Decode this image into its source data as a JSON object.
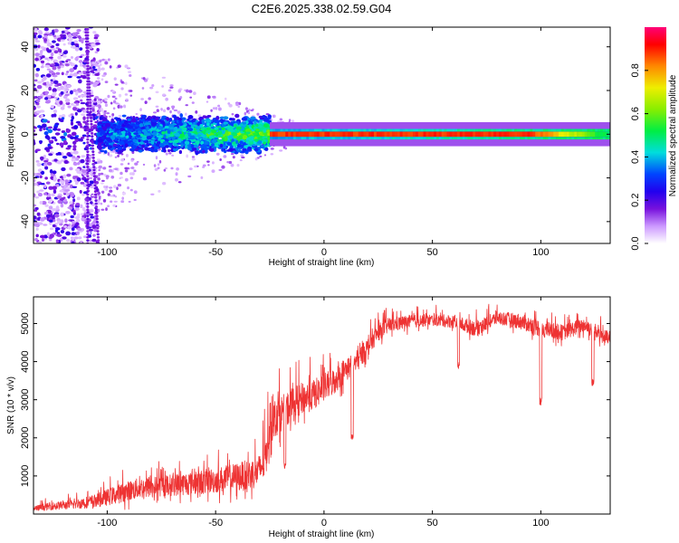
{
  "figure": {
    "title": "C2E6.2025.338.02.59.G04"
  },
  "chart_data": [
    {
      "type": "heatmap",
      "title": "C2E6.2025.338.02.59.G04",
      "xlabel": "Height of straight line (km)",
      "ylabel": "Frequency (Hz)",
      "xlim": [
        -134,
        132
      ],
      "ylim": [
        -50,
        49
      ],
      "xticks": [
        -100,
        -50,
        0,
        50,
        100
      ],
      "yticks": [
        -40,
        -20,
        0,
        20,
        40
      ],
      "colorbar": {
        "label": "Normalized spectral amplitude",
        "range": [
          0,
          1
        ],
        "ticks": [
          0.0,
          0.2,
          0.4,
          0.6,
          0.8
        ],
        "colormap": [
          "#ffffff",
          "#cc99ff",
          "#7711dd",
          "#2200ee",
          "#0044ff",
          "#00dddd",
          "#00ee44",
          "#88ee00",
          "#eeee00",
          "#ff8800",
          "#ff0000",
          "#ff0077"
        ]
      },
      "regions": [
        {
          "name": "noise-scatter",
          "x_range": [
            -134,
            -104
          ],
          "freq_range": [
            -50,
            49
          ],
          "amplitude": 0.18
        },
        {
          "name": "broadband-signal",
          "x_range": [
            -104,
            -25
          ],
          "freq_range": [
            -8,
            8
          ],
          "amplitude": 0.3
        },
        {
          "name": "narrow-carrier",
          "x_range": [
            -25,
            132
          ],
          "freq_range": [
            -2,
            2
          ],
          "amplitude": 0.9
        }
      ],
      "vertical_streak_x": [
        -104,
        -109
      ]
    },
    {
      "type": "line",
      "xlabel": "Height of straight line (km)",
      "ylabel": "SNR (10 * v/v)",
      "xlim": [
        -134,
        132
      ],
      "ylim": [
        0,
        5700
      ],
      "xticks": [
        -100,
        -50,
        0,
        50,
        100
      ],
      "yticks": [
        1000,
        2000,
        3000,
        4000,
        5000
      ],
      "series": [
        {
          "name": "SNR",
          "color": "#ee3333",
          "x": [
            -134,
            -125,
            -115,
            -105,
            -95,
            -85,
            -75,
            -65,
            -55,
            -45,
            -35,
            -30,
            -27,
            -25,
            -22,
            -20,
            -15,
            -10,
            -5,
            0,
            5,
            10,
            15,
            20,
            25,
            30,
            40,
            50,
            60,
            70,
            80,
            90,
            100,
            110,
            120,
            132
          ],
          "values": [
            120,
            180,
            220,
            300,
            450,
            600,
            650,
            700,
            750,
            820,
            900,
            1000,
            1300,
            2200,
            2400,
            2500,
            2700,
            2900,
            3000,
            3200,
            3400,
            3700,
            3900,
            4300,
            4700,
            4900,
            5000,
            5050,
            5000,
            4800,
            5100,
            5000,
            4800,
            4700,
            4900,
            4500
          ],
          "spread": [
            150,
            200,
            250,
            350,
            500,
            550,
            550,
            600,
            650,
            700,
            800,
            850,
            1100,
            1100,
            1000,
            950,
            900,
            850,
            800,
            750,
            700,
            650,
            600,
            500,
            450,
            400,
            350,
            300,
            350,
            400,
            350,
            400,
            450,
            400,
            400,
            400
          ]
        }
      ],
      "dips": [
        {
          "x": -18,
          "value": 1200
        },
        {
          "x": 13,
          "value": 1900
        },
        {
          "x": 100,
          "value": 2850
        },
        {
          "x": 124,
          "value": 3350
        },
        {
          "x": 62,
          "value": 3800
        }
      ]
    }
  ]
}
